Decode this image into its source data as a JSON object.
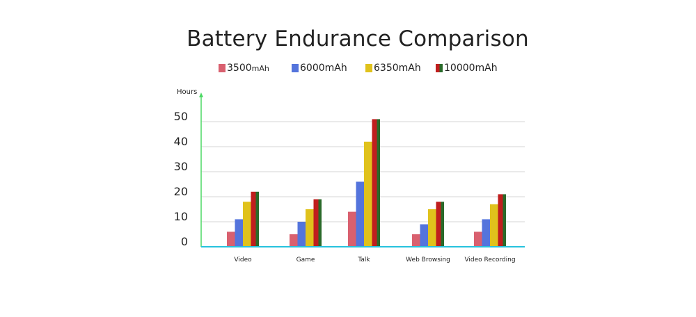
{
  "chart_data": {
    "type": "bar",
    "title": "Battery Endurance Comparison",
    "ylabel": "Hours",
    "xlabel": "",
    "ylim": [
      0,
      60
    ],
    "yticks": [
      0,
      10,
      20,
      30,
      40,
      50
    ],
    "legend_position": "top",
    "grid": true,
    "categories": [
      "Video",
      "Game",
      "Talk",
      "Web Browsing",
      "Video Recording"
    ],
    "series": [
      {
        "name": "3500mAh",
        "label_main": "3500",
        "label_unit": "mAh",
        "color": "#d9606f",
        "values": [
          6,
          5,
          14,
          5,
          6
        ]
      },
      {
        "name": "6000mAh",
        "label_main": "6000mAh",
        "label_unit": "",
        "color": "#5474dc",
        "values": [
          11,
          10,
          26,
          9,
          11
        ]
      },
      {
        "name": "6350mAh",
        "label_main": "6350mAh",
        "label_unit": "",
        "color": "#e0c21c",
        "values": [
          18,
          15,
          42,
          15,
          17
        ]
      },
      {
        "name": "10000mAh",
        "label_main": "10000mAh",
        "label_unit": "",
        "color": "#c01e1e",
        "color2": "#2a6a2a",
        "values": [
          22,
          19,
          51,
          18,
          21
        ]
      }
    ]
  }
}
